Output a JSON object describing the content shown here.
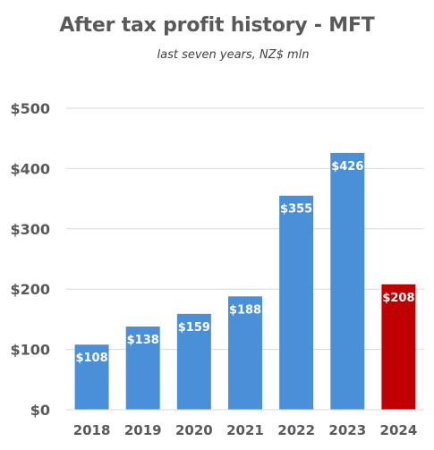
{
  "chart_data": {
    "type": "bar",
    "title": "After tax profit history - MFT",
    "subtitle": "last seven years, NZ$ mln",
    "xlabel": "",
    "ylabel": "",
    "categories": [
      "2018",
      "2019",
      "2020",
      "2021",
      "2022",
      "2023",
      "2024"
    ],
    "values": [
      108,
      138,
      159,
      188,
      355,
      426,
      208
    ],
    "data_labels": [
      "$108",
      "$138",
      "$159",
      "$188",
      "$355",
      "$426",
      "$208"
    ],
    "ylim": [
      0,
      500
    ],
    "yticks": [
      0,
      100,
      200,
      300,
      400,
      500
    ],
    "ytick_labels": [
      "$0",
      "$100",
      "$200",
      "$300",
      "$400",
      "$500"
    ],
    "grid": true,
    "legend": "none",
    "colors": {
      "default_bar": "#4a90d9",
      "highlight_bar": "#c00000",
      "highlight_category": "2024",
      "grid": "#d9d9d9",
      "text": "#595959"
    }
  }
}
